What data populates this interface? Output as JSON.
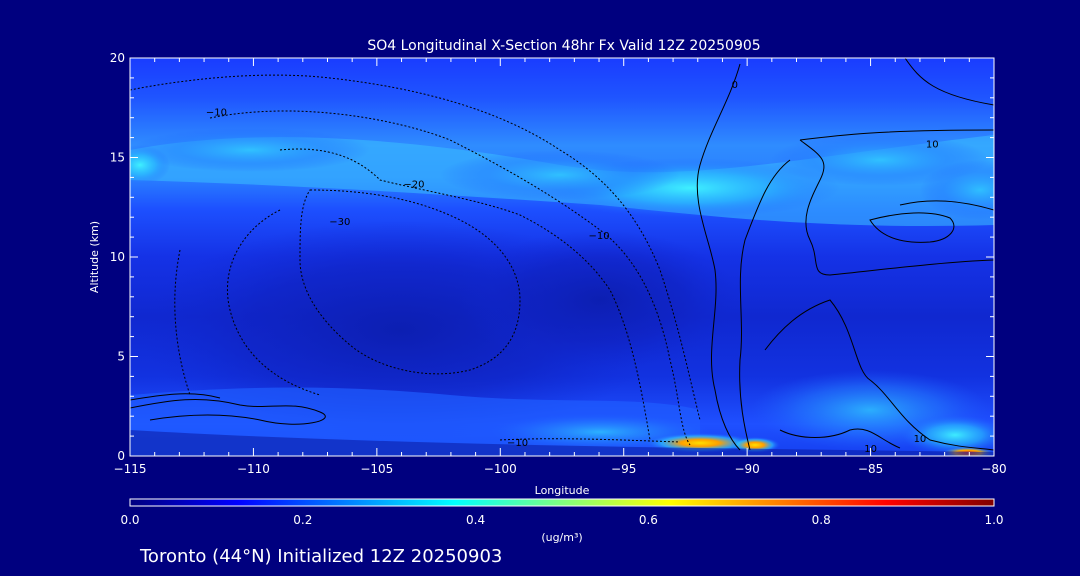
{
  "chart_data": {
    "type": "heatmap",
    "title": "SO4 Longitudinal X-Section 48hr  Fx Valid 12Z 20250905",
    "xlabel": "Longitude",
    "ylabel": "Altitude (km)",
    "xlim": [
      -115,
      -80
    ],
    "ylim": [
      0,
      20
    ],
    "x_ticks": [
      -115,
      -110,
      -105,
      -100,
      -95,
      -90,
      -85,
      -80
    ],
    "x_tick_labels": [
      "−115",
      "−110",
      "−105",
      "−100",
      "−95",
      "−90",
      "−85",
      "−80"
    ],
    "y_ticks": [
      0,
      5,
      10,
      15,
      20
    ],
    "y_tick_labels": [
      "0",
      "5",
      "10",
      "15",
      "20"
    ],
    "colorbar": {
      "label": "(ug/m³)",
      "range": [
        0.0,
        1.0
      ],
      "ticks": [
        0.0,
        0.2,
        0.4,
        0.6,
        0.8,
        1.0
      ],
      "tick_labels": [
        "0.0",
        "0.2",
        "0.4",
        "0.6",
        "0.8",
        "1.0"
      ],
      "colormap": "jet"
    },
    "field_peaks": [
      {
        "lon": -107,
        "alt": 15.0,
        "value": 0.3
      },
      {
        "lon": -93,
        "alt": 13.5,
        "value": 0.38
      },
      {
        "lon": -85,
        "alt": 14.0,
        "value": 0.3
      },
      {
        "lon": -80,
        "alt": 13.0,
        "value": 0.28
      },
      {
        "lon": -92,
        "alt": 0.5,
        "value": 0.62
      },
      {
        "lon": -80.5,
        "alt": 0.2,
        "value": 0.72
      }
    ],
    "contour_labels": [
      {
        "text": "−10",
        "lon": -111.5,
        "alt": 17.1
      },
      {
        "text": "−20",
        "lon": -103.5,
        "alt": 13.5
      },
      {
        "text": "−30",
        "lon": -106.5,
        "alt": 11.6
      },
      {
        "text": "−10",
        "lon": -96.0,
        "alt": 10.9
      },
      {
        "text": "−10",
        "lon": -99.3,
        "alt": 0.5
      },
      {
        "text": "0",
        "lon": -90.5,
        "alt": 18.5
      },
      {
        "text": "10",
        "lon": -82.5,
        "alt": 15.5
      },
      {
        "text": "10",
        "lon": -83.0,
        "alt": 0.7
      },
      {
        "text": "10",
        "lon": -85.0,
        "alt": 0.2
      }
    ],
    "footer": "Toronto (44°N) Initialized 12Z 20250903"
  }
}
